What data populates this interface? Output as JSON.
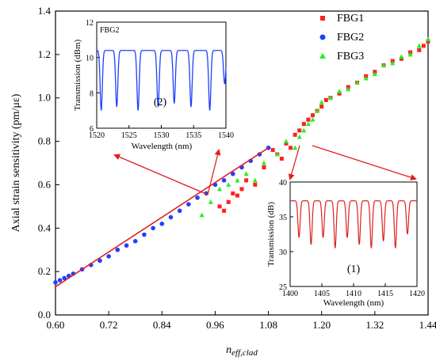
{
  "chart_data": [
    {
      "type": "scatter",
      "title": "",
      "xlabel": "n",
      "xlabel_sub": "eff,clad",
      "ylabel": "Axial strain sensitivity (pm/με)",
      "xlim": [
        0.6,
        1.44
      ],
      "ylim": [
        0.0,
        1.4
      ],
      "xticks": [
        "0.60",
        "0.72",
        "0.84",
        "0.96",
        "1.08",
        "1.20",
        "1.32",
        "1.44"
      ],
      "yticks": [
        "0.0",
        "0.2",
        "0.4",
        "0.6",
        "0.8",
        "1.0",
        "1.2",
        "1.4"
      ],
      "legend_position": "top-right",
      "colors": {
        "FBG1": "#ff2020",
        "FBG2": "#2040ff",
        "FBG3": "#22ee22",
        "fit": "#e02020"
      },
      "series": [
        {
          "name": "FBG1",
          "marker": "square",
          "color": "#ff2020",
          "x": [
            0.97,
            0.98,
            0.99,
            1.0,
            1.01,
            1.02,
            1.03,
            1.05,
            1.07,
            1.09,
            1.1,
            1.11,
            1.12,
            1.13,
            1.14,
            1.15,
            1.16,
            1.17,
            1.18,
            1.19,
            1.2,
            1.21,
            1.22,
            1.24,
            1.26,
            1.28,
            1.3,
            1.32,
            1.34,
            1.36,
            1.38,
            1.4,
            1.42,
            1.43,
            1.44
          ],
          "y": [
            0.5,
            0.48,
            0.52,
            0.56,
            0.55,
            0.58,
            0.62,
            0.6,
            0.68,
            0.76,
            0.74,
            0.72,
            0.79,
            0.77,
            0.83,
            0.85,
            0.88,
            0.9,
            0.92,
            0.94,
            0.96,
            0.99,
            1.0,
            1.02,
            1.05,
            1.07,
            1.1,
            1.12,
            1.15,
            1.17,
            1.18,
            1.21,
            1.22,
            1.24,
            1.26
          ]
        },
        {
          "name": "FBG2",
          "marker": "circle",
          "color": "#2040ff",
          "x": [
            0.6,
            0.61,
            0.62,
            0.63,
            0.64,
            0.66,
            0.68,
            0.7,
            0.72,
            0.74,
            0.76,
            0.78,
            0.8,
            0.82,
            0.84,
            0.86,
            0.88,
            0.9,
            0.92,
            0.94,
            0.96,
            0.98,
            1.0,
            1.02,
            1.04,
            1.06,
            1.08
          ],
          "y": [
            0.15,
            0.16,
            0.17,
            0.18,
            0.19,
            0.21,
            0.23,
            0.25,
            0.27,
            0.3,
            0.32,
            0.34,
            0.37,
            0.4,
            0.42,
            0.45,
            0.48,
            0.51,
            0.54,
            0.56,
            0.6,
            0.62,
            0.65,
            0.68,
            0.71,
            0.74,
            0.77
          ]
        },
        {
          "name": "FBG3",
          "marker": "triangle",
          "color": "#22ee22",
          "x": [
            0.93,
            0.95,
            0.97,
            0.99,
            1.01,
            1.03,
            1.05,
            1.07,
            1.1,
            1.12,
            1.14,
            1.15,
            1.16,
            1.17,
            1.18,
            1.19,
            1.2,
            1.22,
            1.24,
            1.26,
            1.28,
            1.3,
            1.32,
            1.34,
            1.36,
            1.38,
            1.4,
            1.42,
            1.44
          ],
          "y": [
            0.46,
            0.52,
            0.58,
            0.6,
            0.62,
            0.65,
            0.62,
            0.7,
            0.74,
            0.8,
            0.77,
            0.82,
            0.85,
            0.88,
            0.9,
            0.94,
            0.98,
            1.0,
            1.03,
            1.04,
            1.07,
            1.09,
            1.11,
            1.15,
            1.16,
            1.19,
            1.2,
            1.24,
            1.27
          ]
        },
        {
          "name": "",
          "type": "line",
          "color": "#e02020",
          "x": [
            0.6,
            1.08
          ],
          "y": [
            0.13,
            0.77
          ]
        }
      ]
    },
    {
      "type": "line",
      "inset": "(2)",
      "title": "FBG2",
      "xlabel": "Wavelength (nm)",
      "ylabel": "Transmission (dBm)",
      "xlim": [
        1520,
        1540
      ],
      "ylim": [
        6,
        12
      ],
      "xticks": [
        "1520",
        "1525",
        "1530",
        "1535",
        "1540"
      ],
      "yticks": [
        "6",
        "8",
        "10",
        "12"
      ],
      "color": "#2040ff",
      "baseline": 10.4,
      "dips": [
        {
          "x": 1520.7,
          "y": 7.0
        },
        {
          "x": 1523.1,
          "y": 7.2
        },
        {
          "x": 1526.4,
          "y": 7.0
        },
        {
          "x": 1529.5,
          "y": 7.2
        },
        {
          "x": 1532.0,
          "y": 7.4
        },
        {
          "x": 1534.6,
          "y": 7.2
        },
        {
          "x": 1537.5,
          "y": 7.0
        },
        {
          "x": 1539.8,
          "y": 8.5
        }
      ]
    },
    {
      "type": "line",
      "inset": "(1)",
      "xlabel": "Wavelength (nm)",
      "ylabel": "Transmission (dB)",
      "xlim": [
        1400,
        1420
      ],
      "ylim": [
        25,
        40
      ],
      "xticks": [
        "1400",
        "1405",
        "1410",
        "1415",
        "1420"
      ],
      "yticks": [
        "25",
        "30",
        "35",
        "40"
      ],
      "color": "#e02020",
      "baseline": 37.3,
      "dips": [
        {
          "x": 1401.4,
          "y": 32.0
        },
        {
          "x": 1403.3,
          "y": 31.0
        },
        {
          "x": 1405.2,
          "y": 32.0
        },
        {
          "x": 1407.1,
          "y": 30.5
        },
        {
          "x": 1409.0,
          "y": 32.0
        },
        {
          "x": 1410.9,
          "y": 31.0
        },
        {
          "x": 1412.8,
          "y": 30.5
        },
        {
          "x": 1414.7,
          "y": 31.5
        },
        {
          "x": 1416.6,
          "y": 30.5
        },
        {
          "x": 1418.5,
          "y": 32.5
        }
      ]
    }
  ]
}
